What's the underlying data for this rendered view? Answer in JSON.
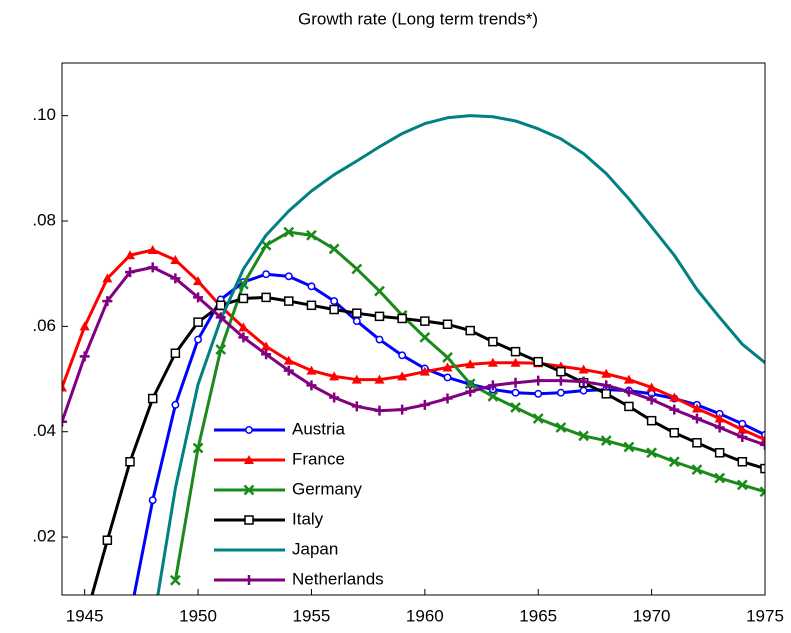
{
  "chart_data": {
    "type": "line",
    "title": "Growth rate (Long term trends*)",
    "x": [
      1944,
      1945,
      1946,
      1947,
      1948,
      1949,
      1950,
      1951,
      1952,
      1953,
      1954,
      1955,
      1956,
      1957,
      1958,
      1959,
      1960,
      1961,
      1962,
      1963,
      1964,
      1965,
      1966,
      1967,
      1968,
      1969,
      1970,
      1971,
      1972,
      1973,
      1974,
      1975
    ],
    "xlim": [
      1944,
      1975
    ],
    "xticks": [
      1945,
      1950,
      1955,
      1960,
      1965,
      1970,
      1975
    ],
    "ylim": [
      0.009,
      0.11
    ],
    "yticks": [
      {
        "value": 0.02,
        "label": ".02"
      },
      {
        "value": 0.04,
        "label": ".04"
      },
      {
        "value": 0.06,
        "label": ".06"
      },
      {
        "value": 0.08,
        "label": ".08"
      },
      {
        "value": 0.1,
        "label": ".10"
      }
    ],
    "grid": false,
    "series": [
      {
        "name": "Austria",
        "color": "#0000ff",
        "marker": "circle",
        "values": [
          null,
          null,
          null,
          0.005,
          0.027,
          0.0451,
          0.0575,
          0.0651,
          0.0684,
          0.0699,
          0.0695,
          0.0676,
          0.0648,
          0.061,
          0.0575,
          0.0545,
          0.052,
          0.0503,
          0.049,
          0.048,
          0.0474,
          0.0472,
          0.0474,
          0.0478,
          0.048,
          0.0478,
          0.0472,
          0.0463,
          0.0451,
          0.0434,
          0.0415,
          0.0394
        ]
      },
      {
        "name": "France",
        "color": "#ff0000",
        "marker": "triangle",
        "values": [
          0.0484,
          0.06,
          0.0691,
          0.0735,
          0.0745,
          0.0726,
          0.0686,
          0.0638,
          0.0598,
          0.0562,
          0.0535,
          0.0516,
          0.0505,
          0.0499,
          0.0499,
          0.0505,
          0.0514,
          0.0522,
          0.0528,
          0.0531,
          0.0531,
          0.053,
          0.0524,
          0.0518,
          0.051,
          0.0499,
          0.0484,
          0.0465,
          0.0444,
          0.0425,
          0.0404,
          0.0385
        ]
      },
      {
        "name": "Germany",
        "color": "#1a8a1a",
        "marker": "x",
        "values": [
          null,
          null,
          null,
          null,
          null,
          0.0118,
          0.0369,
          0.0556,
          0.068,
          0.0754,
          0.0779,
          0.0773,
          0.0747,
          0.0709,
          0.0667,
          0.0621,
          0.0579,
          0.0541,
          0.0491,
          0.0467,
          0.0446,
          0.0425,
          0.0408,
          0.0392,
          0.0383,
          0.0371,
          0.036,
          0.0343,
          0.0328,
          0.0312,
          0.0299,
          0.0286
        ]
      },
      {
        "name": "Italy",
        "color": "#000000",
        "marker": "square",
        "values": [
          null,
          0.004,
          0.0194,
          0.0343,
          0.0463,
          0.0549,
          0.0608,
          0.064,
          0.0653,
          0.0655,
          0.0648,
          0.064,
          0.0632,
          0.0625,
          0.0619,
          0.0615,
          0.061,
          0.0604,
          0.0592,
          0.0571,
          0.0552,
          0.0533,
          0.0514,
          0.0493,
          0.0472,
          0.0448,
          0.0421,
          0.0398,
          0.0379,
          0.036,
          0.0343,
          0.033
        ]
      },
      {
        "name": "Japan",
        "color": "#008080",
        "marker": "none",
        "values": [
          null,
          null,
          null,
          null,
          0.003,
          0.0293,
          0.049,
          0.0613,
          0.0709,
          0.0773,
          0.0819,
          0.0857,
          0.0888,
          0.0914,
          0.0941,
          0.0966,
          0.0985,
          0.0996,
          0.1,
          0.0998,
          0.099,
          0.0975,
          0.0956,
          0.0928,
          0.089,
          0.0842,
          0.0789,
          0.0735,
          0.067,
          0.0617,
          0.0566,
          0.0531
        ]
      },
      {
        "name": "Netherlands",
        "color": "#800080",
        "marker": "plus",
        "values": [
          0.0419,
          0.0543,
          0.0648,
          0.0703,
          0.0712,
          0.0691,
          0.0655,
          0.0617,
          0.0579,
          0.0547,
          0.0516,
          0.0488,
          0.0465,
          0.0448,
          0.044,
          0.0442,
          0.0451,
          0.0463,
          0.0476,
          0.0488,
          0.0493,
          0.0497,
          0.0497,
          0.0495,
          0.0488,
          0.0476,
          0.0461,
          0.0442,
          0.0425,
          0.0408,
          0.039,
          0.0375
        ]
      }
    ]
  }
}
